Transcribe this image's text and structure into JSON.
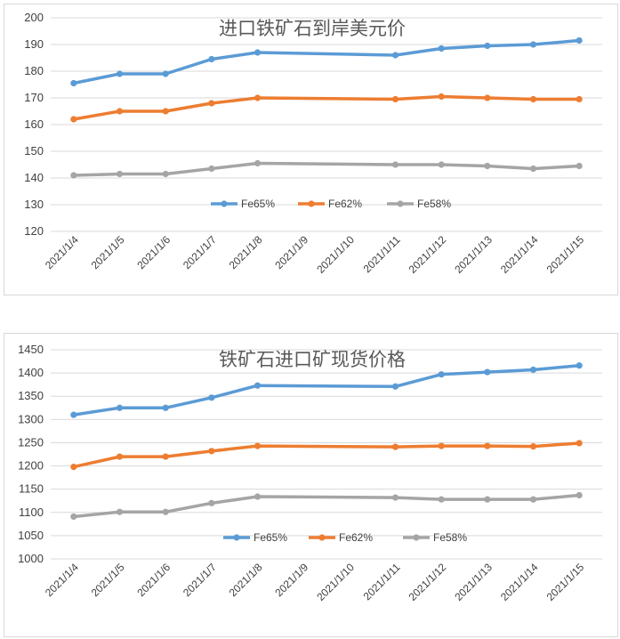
{
  "chart_data": [
    {
      "type": "line",
      "title": "进口铁矿石到岸美元价",
      "categories": [
        "2021/1/4",
        "2021/1/5",
        "2021/1/6",
        "2021/1/7",
        "2021/1/8",
        "2021/1/9",
        "2021/1/10",
        "2021/1/11",
        "2021/1/12",
        "2021/1/13",
        "2021/1/14",
        "2021/1/15"
      ],
      "ylim": [
        120,
        200
      ],
      "yticks": [
        120,
        130,
        140,
        150,
        160,
        170,
        180,
        190,
        200
      ],
      "grid": true,
      "legend": "inside-center",
      "series": [
        {
          "name": "Fe65%",
          "color": "#5b9bd5",
          "values": [
            175.5,
            179,
            179,
            184.5,
            187,
            null,
            null,
            186,
            188.5,
            189.5,
            190,
            191.5
          ]
        },
        {
          "name": "Fe62%",
          "color": "#ed7d31",
          "values": [
            162,
            165,
            165,
            168,
            170,
            null,
            null,
            169.5,
            170.5,
            170,
            169.5,
            169.5
          ]
        },
        {
          "name": "Fe58%",
          "color": "#a5a5a5",
          "values": [
            141,
            141.5,
            141.5,
            143.5,
            145.5,
            null,
            null,
            145,
            145,
            144.5,
            143.5,
            144.5
          ]
        }
      ]
    },
    {
      "type": "line",
      "title": "铁矿石进口矿现货价格",
      "categories": [
        "2021/1/4",
        "2021/1/5",
        "2021/1/6",
        "2021/1/7",
        "2021/1/8",
        "2021/1/9",
        "2021/1/10",
        "2021/1/11",
        "2021/1/12",
        "2021/1/13",
        "2021/1/14",
        "2021/1/15"
      ],
      "ylim": [
        1000,
        1450
      ],
      "yticks": [
        1000,
        1050,
        1100,
        1150,
        1200,
        1250,
        1300,
        1350,
        1400,
        1450
      ],
      "grid": true,
      "legend": "inside-center",
      "series": [
        {
          "name": "Fe65%",
          "color": "#5b9bd5",
          "values": [
            1310,
            1325,
            1325,
            1347,
            1373,
            null,
            null,
            1371,
            1397,
            1402,
            1407,
            1416
          ]
        },
        {
          "name": "Fe62%",
          "color": "#ed7d31",
          "values": [
            1198,
            1220,
            1220,
            1232,
            1243,
            null,
            null,
            1241,
            1243,
            1243,
            1242,
            1249
          ]
        },
        {
          "name": "Fe58%",
          "color": "#a5a5a5",
          "values": [
            1091,
            1101,
            1101,
            1120,
            1134,
            null,
            null,
            1132,
            1128,
            1128,
            1128,
            1137
          ]
        }
      ]
    }
  ]
}
